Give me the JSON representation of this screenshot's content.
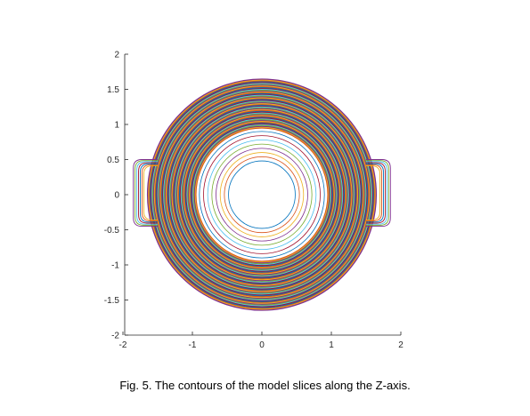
{
  "caption": "Fig. 5. The contours of the model slices along the Z-axis.",
  "chart_data": {
    "type": "line",
    "title": "",
    "xlabel": "",
    "ylabel": "",
    "xlim": [
      -2,
      2
    ],
    "ylim": [
      -2,
      2
    ],
    "x_ticks": [
      -2,
      -1,
      0,
      1,
      2
    ],
    "x_tick_labels": [
      "-2",
      "-1",
      "0",
      "1",
      "2"
    ],
    "y_ticks": [
      -2,
      -1.5,
      -1,
      -0.5,
      0,
      0.5,
      1,
      1.5,
      2
    ],
    "y_tick_labels": [
      "-2",
      "-1.5",
      "-1",
      "-0.5",
      "0",
      "0.5",
      "1",
      "1.5",
      "2"
    ],
    "grid": false,
    "legend": "none",
    "description": "Concentric closed contour curves centered at (0,0). Radii range from about 0.5 to 1.65; the outermost contours include rounded rectangular handle lobes at both sides extending to about |x| = 1.85 for y between about -0.45 and 0.5.",
    "contours": {
      "center": [
        0,
        0
      ],
      "inner_radius": 0.48,
      "outer_radius": 1.65,
      "handle": {
        "x_extent": 1.85,
        "y_range": [
          -0.45,
          0.5
        ]
      }
    },
    "series_colors": [
      "#0072BD",
      "#D95319",
      "#EDB120",
      "#7E2F8E",
      "#77AC30",
      "#4DBEEE",
      "#A2142F"
    ]
  }
}
